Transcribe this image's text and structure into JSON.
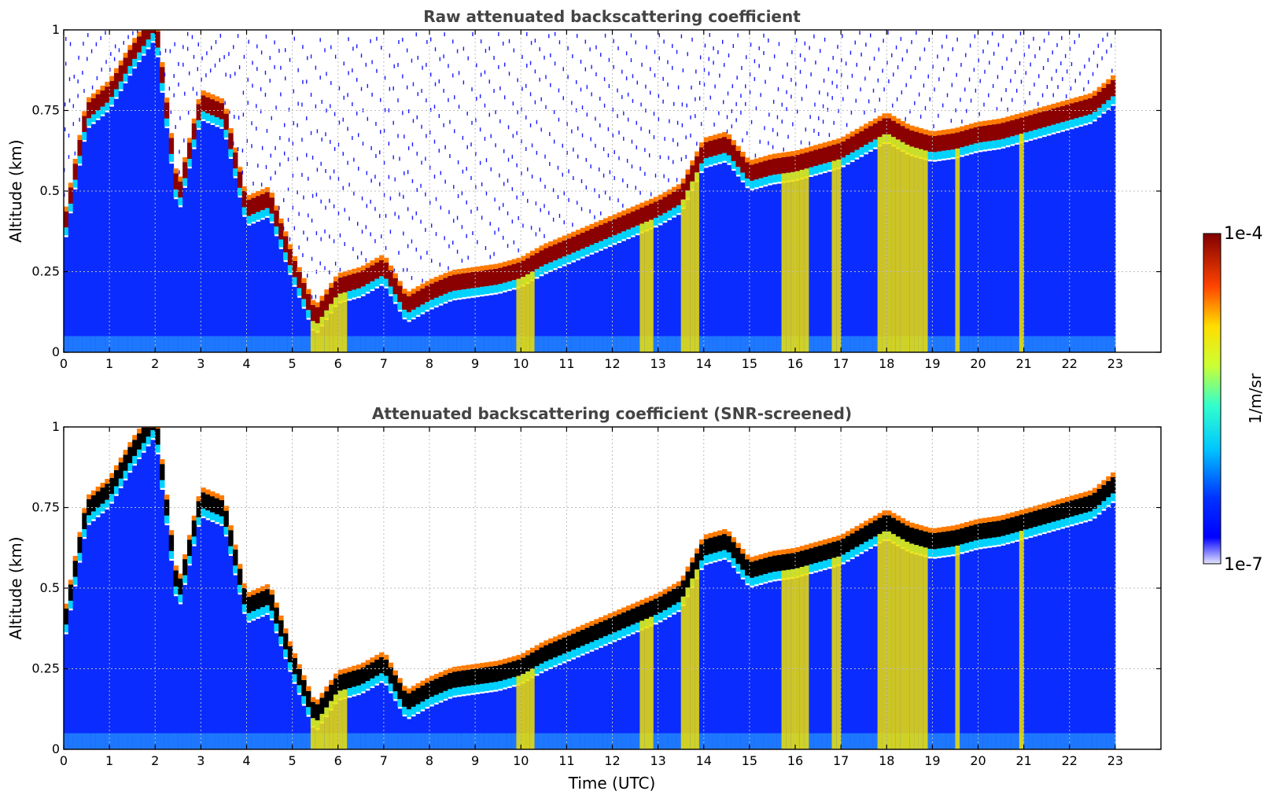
{
  "chart_data": [
    {
      "type": "heatmap",
      "title": "Raw attenuated backscattering coefficient",
      "xlabel": "",
      "ylabel": "Altitude (km)",
      "xlim": [
        0,
        24
      ],
      "ylim": [
        0,
        1
      ],
      "xticks": [
        0,
        1,
        2,
        3,
        4,
        5,
        6,
        7,
        8,
        9,
        10,
        11,
        12,
        13,
        14,
        15,
        16,
        17,
        18,
        19,
        20,
        21,
        22,
        23
      ],
      "yticks": [
        "0",
        "0.25",
        "0.5",
        "0.75",
        "1"
      ],
      "grid": true,
      "data_end_time": 23,
      "layer_top_km": {
        "time": [
          0,
          0.5,
          1.0,
          1.5,
          2.0,
          2.5,
          3.0,
          3.5,
          4.0,
          4.5,
          5.0,
          5.5,
          6.0,
          6.5,
          7.0,
          7.5,
          8.0,
          8.5,
          9.0,
          9.5,
          10.0,
          10.5,
          11.0,
          11.5,
          12.0,
          12.5,
          13.0,
          13.5,
          14.0,
          14.5,
          15.0,
          15.5,
          16.0,
          16.5,
          17.0,
          17.5,
          18.0,
          18.5,
          19.0,
          19.5,
          20.0,
          20.5,
          21.0,
          21.5,
          22.0,
          22.5,
          23.0
        ],
        "altitude": [
          0.35,
          0.72,
          0.78,
          0.9,
          1.0,
          0.45,
          0.75,
          0.72,
          0.42,
          0.45,
          0.25,
          0.08,
          0.18,
          0.2,
          0.24,
          0.12,
          0.16,
          0.19,
          0.2,
          0.21,
          0.23,
          0.27,
          0.3,
          0.33,
          0.36,
          0.39,
          0.42,
          0.46,
          0.6,
          0.62,
          0.53,
          0.55,
          0.56,
          0.58,
          0.6,
          0.64,
          0.68,
          0.64,
          0.62,
          0.63,
          0.65,
          0.66,
          0.68,
          0.7,
          0.72,
          0.74,
          0.8
        ]
      }
    },
    {
      "type": "heatmap",
      "title": "Attenuated backscattering coefficient (SNR-screened)",
      "xlabel": "Time (UTC)",
      "ylabel": "Altitude (km)",
      "xlim": [
        0,
        24
      ],
      "ylim": [
        0,
        1
      ],
      "xticks": [
        0,
        1,
        2,
        3,
        4,
        5,
        6,
        7,
        8,
        9,
        10,
        11,
        12,
        13,
        14,
        15,
        16,
        17,
        18,
        19,
        20,
        21,
        22,
        23
      ],
      "yticks": [
        "0",
        "0.25",
        "0.5",
        "0.75",
        "1"
      ],
      "grid": true,
      "data_end_time": 23
    }
  ],
  "colorbar": {
    "label": "1/m/sr",
    "max_label": "1e-4",
    "min_label": "1e-7",
    "colormap": "jet",
    "scale": "log"
  },
  "colors": {
    "background": "#ffffff",
    "title": "#444444",
    "grid": "#bdbdbd"
  }
}
